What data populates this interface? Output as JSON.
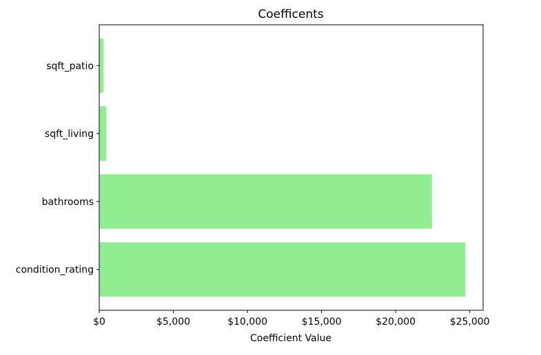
{
  "chart_data": {
    "type": "bar",
    "orientation": "horizontal",
    "title": "Coefficents",
    "xlabel": "Coefficient Value",
    "ylabel": "",
    "categories": [
      "condition_rating",
      "bathrooms",
      "sqft_living",
      "sqft_patio"
    ],
    "values": [
      24700,
      22450,
      480,
      290
    ],
    "xlim": [
      0,
      25900
    ],
    "xticks": [
      0,
      5000,
      10000,
      15000,
      20000,
      25000
    ],
    "xtick_labels": [
      "$0",
      "$5,000",
      "$10,000",
      "$15,000",
      "$20,000",
      "$25,000"
    ],
    "grid": false,
    "legend": "none",
    "bar_color": "#90ee90"
  }
}
